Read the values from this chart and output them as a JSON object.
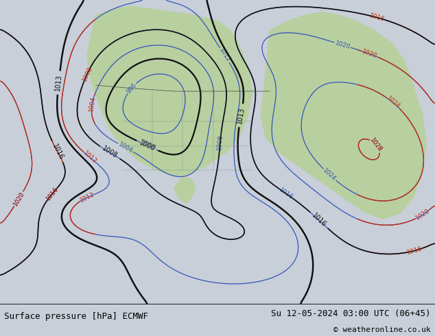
{
  "title_left": "Surface pressure [hPa] ECMWF",
  "title_right": "Su 12-05-2024 03:00 UTC (06+45)",
  "copyright": "© weatheronline.co.uk",
  "bg_color": "#c8cfd8",
  "map_bg": "#dcdcdc",
  "land_color": "#b8cfa0",
  "ocean_color": "#dcdcdc",
  "bottom_bar_color": "#ffffff",
  "font_size_bottom": 9,
  "font_size_copyright": 8,
  "blue_color": "#3355bb",
  "red_color": "#cc2200",
  "black_color": "#111111"
}
